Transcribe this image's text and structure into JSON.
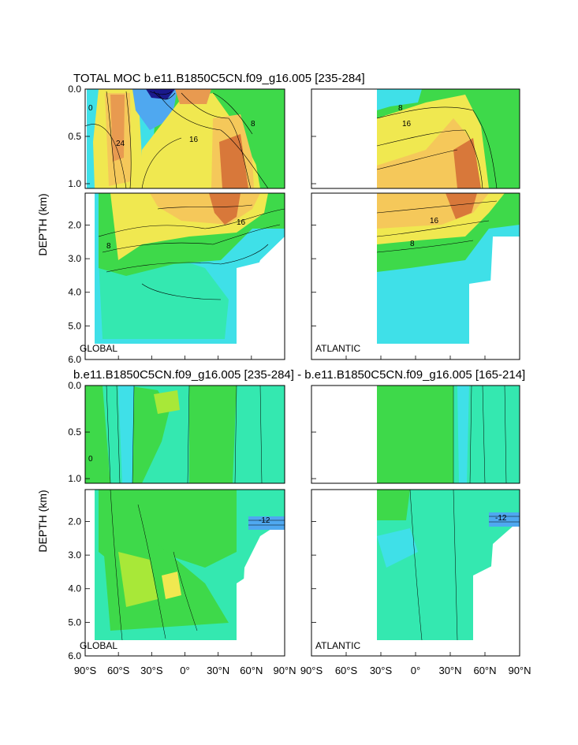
{
  "chart_data": {
    "type": "heatmap",
    "title": "TOTAL MOC b.e11.B1850C5CN.f09_g16.005 [235-284]",
    "diff_title": "b.e11.B1850C5CN.f09_g16.005 [235-284] - b.e11.B1850C5CN.f09_g16.005 [165-214]",
    "ylabel": "DEPTH (km)",
    "x_ticks": [
      "90°S",
      "60°S",
      "30°S",
      "0°",
      "30°N",
      "60°N",
      "90°N"
    ],
    "y_ticks_upper": [
      "0.0",
      "0.5",
      "1.0"
    ],
    "y_ticks_lower": [
      "2.0",
      "3.0",
      "4.0",
      "5.0",
      "6.0"
    ],
    "xlim": [
      -90,
      90
    ],
    "ylim_upper": [
      0,
      1.05
    ],
    "ylim_lower": [
      1.05,
      6.0
    ],
    "basins": [
      "GLOBAL",
      "ATLANTIC"
    ],
    "total_moc_contour_labels": [
      "0",
      "8",
      "16",
      "24"
    ],
    "diff_contour_labels": [
      "0",
      "-12"
    ],
    "colors": {
      "strong_negative": "#1a1a8c",
      "negative": "#4fa8f0",
      "weak_negative": "#3fe0e8",
      "near_zero": "#34e8b0",
      "weak_positive": "#3ed94a",
      "positive": "#a8e838",
      "moderate": "#f0e850",
      "strong": "#f5c85a",
      "very_strong": "#e89a50",
      "max": "#d8783a"
    }
  }
}
